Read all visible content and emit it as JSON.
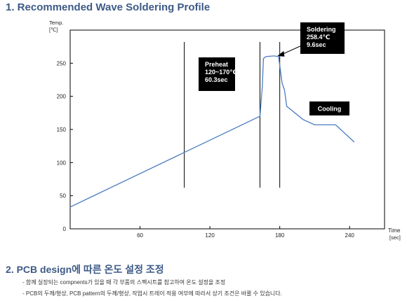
{
  "section1": {
    "title": "1. Recommended Wave Soldering Profile"
  },
  "section2": {
    "title": "2.  PCB design에 따른 온도 설정 조정",
    "bullets": [
      "-  함께 실장되는 compnents가 있을 때 각 부품의 스펙시트를 참고하여 온도 설정을 조정",
      "-  PCB의 두께/형상, PCB pattern의 두께/형상, 작업시 트레이 적용 여부에 따라서 상기 조건은 바뀔 수 있습니다."
    ]
  },
  "chart_data": {
    "type": "line",
    "title": "",
    "ylabel": [
      "Temp.",
      "[℃]"
    ],
    "xlabel": [
      "Time",
      "[sec]"
    ],
    "xlim": [
      0,
      270
    ],
    "ylim": [
      0,
      300
    ],
    "xticks": [
      60,
      120,
      180,
      240
    ],
    "yticks": [
      0,
      50,
      100,
      150,
      200,
      250
    ],
    "grid": false,
    "series": [
      {
        "name": "",
        "color": "#4a7cc2",
        "points": [
          [
            0,
            33
          ],
          [
            163,
            170
          ],
          [
            165,
            215
          ],
          [
            166,
            257
          ],
          [
            168,
            260
          ],
          [
            175,
            261
          ],
          [
            179,
            260
          ],
          [
            182,
            220
          ],
          [
            184,
            210
          ],
          [
            186,
            185
          ],
          [
            200,
            165
          ],
          [
            210,
            157
          ],
          [
            228,
            157
          ],
          [
            244,
            131
          ]
        ]
      }
    ],
    "vertical_markers": [
      {
        "x": 98,
        "y_top": 282,
        "y_bottom": 62
      },
      {
        "x": 163,
        "y_top": 282,
        "y_bottom": 62
      },
      {
        "x": 180,
        "y_top": 282,
        "y_bottom": 62
      }
    ],
    "annotations": [
      {
        "id": "preheat",
        "lines": [
          "Preheat",
          "120~170℃",
          "60.3sec"
        ]
      },
      {
        "id": "soldering",
        "lines": [
          "Soldering",
          "258.4℃",
          "9.6sec"
        ]
      },
      {
        "id": "cooling",
        "lines": [
          "Cooling"
        ]
      }
    ]
  }
}
